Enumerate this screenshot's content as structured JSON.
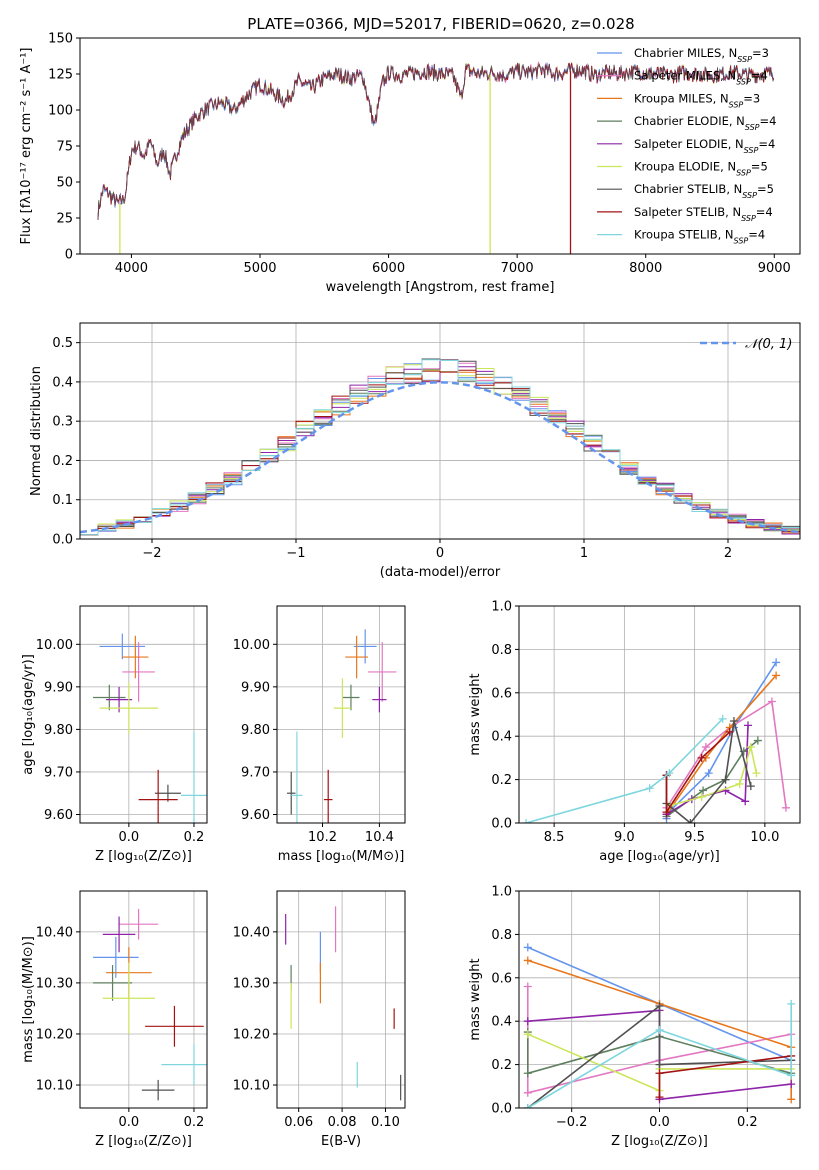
{
  "title": "PLATE=0366, MJD=52017, FIBERID=0620, z=0.028",
  "colors": {
    "Chabrier MILES": "#6495ed",
    "Salpeter MILES": "#e377c2",
    "Kroupa MILES": "#e8771c",
    "Chabrier ELODIE": "#5f7f5f",
    "Salpeter ELODIE": "#8e24aa",
    "Kroupa ELODIE": "#cce65a",
    "Chabrier STELIB": "#505050",
    "Salpeter STELIB": "#a31212",
    "Kroupa STELIB": "#7fd6de"
  },
  "chart_data": [
    {
      "type": "line",
      "title": "PLATE=0366, MJD=52017, FIBERID=0620, z=0.028",
      "xlabel": "wavelength [Angstrom, rest frame]",
      "ylabel": "Flux [fλ10⁻¹⁷ erg cm⁻² s⁻¹ A⁻¹]",
      "xlim": [
        3600,
        9200
      ],
      "ylim": [
        0,
        150
      ],
      "xticks": [
        4000,
        5000,
        6000,
        7000,
        8000,
        9000
      ],
      "yticks": [
        0,
        25,
        50,
        75,
        100,
        125,
        150
      ],
      "legend_position": "right",
      "legend": [
        {
          "label": "Chabrier MILES, N",
          "nssp": "3"
        },
        {
          "label": "Salpeter MILES, N",
          "nssp": "4"
        },
        {
          "label": "Kroupa MILES, N",
          "nssp": "3"
        },
        {
          "label": "Chabrier ELODIE, N",
          "nssp": "4"
        },
        {
          "label": "Salpeter ELODIE, N",
          "nssp": "4"
        },
        {
          "label": "Kroupa ELODIE, N",
          "nssp": "5"
        },
        {
          "label": "Chabrier STELIB, N",
          "nssp": "5"
        },
        {
          "label": "Salpeter STELIB, N",
          "nssp": "4"
        },
        {
          "label": "Kroupa STELIB, N",
          "nssp": "4"
        }
      ],
      "nssp_sub": "SSP",
      "nssp_eq": "=",
      "spectrum_x": [
        3740,
        3780,
        3820,
        3860,
        3900,
        3950,
        4000,
        4050,
        4100,
        4150,
        4200,
        4250,
        4300,
        4350,
        4400,
        4500,
        4600,
        4700,
        4800,
        4900,
        5000,
        5100,
        5200,
        5300,
        5400,
        5500,
        5600,
        5700,
        5800,
        5890,
        5950,
        6000,
        6100,
        6200,
        6300,
        6400,
        6500,
        6563,
        6600,
        6700,
        6800,
        6900,
        7000,
        7100,
        7200,
        7300,
        7400,
        7500,
        7600,
        7700,
        7800,
        7900,
        8000,
        8100,
        8200,
        8300,
        8400,
        8500,
        8600,
        8700,
        8800,
        8900,
        9000
      ],
      "spectrum_y": [
        30,
        45,
        42,
        38,
        35,
        40,
        72,
        75,
        68,
        78,
        62,
        72,
        55,
        70,
        82,
        95,
        102,
        105,
        100,
        110,
        118,
        112,
        106,
        120,
        115,
        122,
        125,
        122,
        124,
        88,
        118,
        126,
        124,
        126,
        127,
        125,
        124,
        108,
        128,
        125,
        126,
        124,
        127,
        126,
        128,
        125,
        127,
        128,
        124,
        126,
        125,
        127,
        126,
        125,
        124,
        126,
        125,
        124,
        125,
        126,
        124,
        125,
        126
      ],
      "dropouts": [
        {
          "x": 3910,
          "y_from": 35,
          "y_to": 0,
          "series": "Kroupa ELODIE"
        },
        {
          "x": 6790,
          "y_from": 124,
          "y_to": 0,
          "series": "Kroupa ELODIE"
        },
        {
          "x": 7415,
          "y_from": 127,
          "y_to": 0,
          "series": "Salpeter STELIB"
        }
      ]
    },
    {
      "type": "histogram",
      "xlabel": "(data-model)/error",
      "ylabel": "Normed distribution",
      "xlim": [
        -2.5,
        2.5
      ],
      "ylim": [
        0,
        0.55
      ],
      "xticks": [
        -2,
        -1,
        0,
        1,
        2
      ],
      "yticks": [
        0.0,
        0.1,
        0.2,
        0.3,
        0.4,
        0.5
      ],
      "legend_position": "top-right",
      "gaussian_label": "𝒩(0, 1)",
      "gaussian": {
        "mean": 0,
        "sigma": 1
      },
      "bin_width": 0.125
    },
    {
      "type": "scatter",
      "xlabel": "Z [log₁₀(Z/Z⊙)]",
      "ylabel": "age  [log₁₀(age/yr)]",
      "xlim": [
        -0.15,
        0.24
      ],
      "ylim": [
        9.58,
        10.09
      ],
      "xticks": [
        0.0,
        0.2
      ],
      "yticks": [
        9.6,
        9.7,
        9.8,
        9.9,
        10.0
      ],
      "points": [
        {
          "series": "Chabrier MILES",
          "x": -0.02,
          "y": 9.995,
          "xerr": 0.07,
          "yerr": 0.03
        },
        {
          "series": "Salpeter MILES",
          "x": 0.03,
          "y": 9.935,
          "xerr": 0.05,
          "yerr": 0.07
        },
        {
          "series": "Kroupa MILES",
          "x": 0.02,
          "y": 9.97,
          "xerr": 0.04,
          "yerr": 0.05
        },
        {
          "series": "Chabrier ELODIE",
          "x": -0.06,
          "y": 9.875,
          "xerr": 0.05,
          "yerr": 0.03
        },
        {
          "series": "Salpeter ELODIE",
          "x": -0.03,
          "y": 9.87,
          "xerr": 0.04,
          "yerr": 0.03
        },
        {
          "series": "Kroupa ELODIE",
          "x": 0.0,
          "y": 9.85,
          "xerr": 0.09,
          "yerr": 0.06
        },
        {
          "series": "Chabrier STELIB",
          "x": 0.12,
          "y": 9.65,
          "xerr": 0.04,
          "yerr": 0.02
        },
        {
          "series": "Salpeter STELIB",
          "x": 0.09,
          "y": 9.635,
          "xerr": 0.06,
          "yerr": 0.07
        },
        {
          "series": "Kroupa STELIB",
          "x": 0.2,
          "y": 9.645,
          "xerr": 0.04,
          "yerr": 0.15
        }
      ]
    },
    {
      "type": "scatter",
      "xlabel": "mass [log₁₀(M/M⊙)]",
      "xlim": [
        10.04,
        10.49
      ],
      "ylim": [
        9.58,
        10.09
      ],
      "xticks": [
        10.2,
        10.4
      ],
      "yticks": [
        9.6,
        9.7,
        9.8,
        9.9,
        10.0
      ],
      "points": [
        {
          "series": "Chabrier MILES",
          "x": 10.35,
          "y": 9.995,
          "xerr": 0.04,
          "yerr": 0.04
        },
        {
          "series": "Salpeter MILES",
          "x": 10.41,
          "y": 9.935,
          "xerr": 0.05,
          "yerr": 0.07
        },
        {
          "series": "Kroupa MILES",
          "x": 10.32,
          "y": 9.97,
          "xerr": 0.04,
          "yerr": 0.05
        },
        {
          "series": "Chabrier ELODIE",
          "x": 10.3,
          "y": 9.875,
          "xerr": 0.03,
          "yerr": 0.03
        },
        {
          "series": "Salpeter ELODIE",
          "x": 10.4,
          "y": 9.87,
          "xerr": 0.025,
          "yerr": 0.03
        },
        {
          "series": "Kroupa ELODIE",
          "x": 10.27,
          "y": 9.85,
          "xerr": 0.03,
          "yerr": 0.07
        },
        {
          "series": "Chabrier STELIB",
          "x": 10.09,
          "y": 9.65,
          "xerr": 0.015,
          "yerr": 0.05
        },
        {
          "series": "Salpeter STELIB",
          "x": 10.22,
          "y": 9.635,
          "xerr": 0.015,
          "yerr": 0.07
        },
        {
          "series": "Kroupa STELIB",
          "x": 10.11,
          "y": 9.645,
          "xerr": 0.02,
          "yerr": 0.15
        }
      ]
    },
    {
      "type": "line",
      "xlabel": "age  [log₁₀(age/yr)]",
      "ylabel": "mass weight",
      "xlim": [
        8.25,
        10.25
      ],
      "ylim": [
        0,
        1.0
      ],
      "xticks": [
        8.5,
        9.0,
        9.5,
        10.0
      ],
      "yticks": [
        0.0,
        0.2,
        0.4,
        0.6,
        0.8,
        1.0
      ],
      "series": [
        {
          "name": "Chabrier MILES",
          "x": [
            9.3,
            9.3,
            9.6,
            9.78,
            10.08
          ],
          "y": [
            0.02,
            0.04,
            0.23,
            0.44,
            0.74
          ]
        },
        {
          "name": "Salpeter MILES",
          "x": [
            9.3,
            9.58,
            9.75,
            10.05,
            10.15
          ],
          "y": [
            0.07,
            0.35,
            0.44,
            0.56,
            0.07
          ]
        },
        {
          "name": "Kroupa MILES",
          "x": [
            9.3,
            9.58,
            9.75,
            10.08
          ],
          "y": [
            0.04,
            0.3,
            0.44,
            0.68
          ]
        },
        {
          "name": "Chabrier ELODIE",
          "x": [
            9.3,
            9.56,
            9.72,
            9.85,
            9.95
          ],
          "y": [
            0.03,
            0.15,
            0.2,
            0.33,
            0.38
          ]
        },
        {
          "name": "Salpeter ELODIE",
          "x": [
            9.3,
            9.48,
            9.72,
            9.86,
            9.88
          ],
          "y": [
            0.04,
            0.11,
            0.15,
            0.1,
            0.45
          ]
        },
        {
          "name": "Kroupa ELODIE",
          "x": [
            9.32,
            9.55,
            9.82,
            9.9,
            9.94
          ],
          "y": [
            0.08,
            0.12,
            0.18,
            0.35,
            0.23
          ]
        },
        {
          "name": "Chabrier STELIB",
          "x": [
            9.3,
            9.3,
            9.47,
            9.72,
            9.78,
            9.9
          ],
          "y": [
            0.22,
            0.09,
            0.0,
            0.2,
            0.47,
            0.17
          ]
        },
        {
          "name": "Salpeter STELIB",
          "x": [
            9.3,
            9.3,
            9.55,
            9.75
          ],
          "y": [
            0.22,
            0.05,
            0.3,
            0.42
          ]
        },
        {
          "name": "Kroupa STELIB",
          "x": [
            8.3,
            9.18,
            9.32,
            9.7
          ],
          "y": [
            0.0,
            0.16,
            0.23,
            0.48
          ]
        }
      ]
    },
    {
      "type": "scatter",
      "xlabel": "Z [log₁₀(Z/Z⊙)]",
      "ylabel": "mass [log₁₀(M/M⊙)]",
      "xlim": [
        -0.15,
        0.24
      ],
      "ylim": [
        10.055,
        10.48
      ],
      "xticks": [
        0.0,
        0.2
      ],
      "yticks": [
        10.1,
        10.2,
        10.3,
        10.4
      ],
      "points": [
        {
          "series": "Chabrier MILES",
          "x": -0.04,
          "y": 10.35,
          "xerr": 0.07,
          "yerr": 0.04
        },
        {
          "series": "Salpeter MILES",
          "x": 0.03,
          "y": 10.415,
          "xerr": 0.06,
          "yerr": 0.03
        },
        {
          "series": "Kroupa MILES",
          "x": 0.0,
          "y": 10.32,
          "xerr": 0.07,
          "yerr": 0.05
        },
        {
          "series": "Chabrier ELODIE",
          "x": -0.05,
          "y": 10.3,
          "xerr": 0.06,
          "yerr": 0.035
        },
        {
          "series": "Salpeter ELODIE",
          "x": -0.03,
          "y": 10.395,
          "xerr": 0.05,
          "yerr": 0.035
        },
        {
          "series": "Kroupa ELODIE",
          "x": 0.0,
          "y": 10.27,
          "xerr": 0.08,
          "yerr": 0.07
        },
        {
          "series": "Chabrier STELIB",
          "x": 0.09,
          "y": 10.09,
          "xerr": 0.05,
          "yerr": 0.02
        },
        {
          "series": "Salpeter STELIB",
          "x": 0.14,
          "y": 10.215,
          "xerr": 0.09,
          "yerr": 0.04
        },
        {
          "series": "Kroupa STELIB",
          "x": 0.2,
          "y": 10.14,
          "xerr": 0.1,
          "yerr": 0.04
        }
      ]
    },
    {
      "type": "scatter",
      "xlabel": "E(B-V)",
      "xlim": [
        0.05,
        0.109
      ],
      "ylim": [
        10.055,
        10.48
      ],
      "xticks": [
        0.06,
        0.08,
        0.1
      ],
      "yticks": [
        10.1,
        10.2,
        10.3,
        10.4
      ],
      "points": [
        {
          "series": "Chabrier MILES",
          "x": 0.07,
          "y": 10.36,
          "yerr": 0.04
        },
        {
          "series": "Salpeter MILES",
          "x": 0.077,
          "y": 10.405,
          "yerr": 0.045
        },
        {
          "series": "Kroupa MILES",
          "x": 0.07,
          "y": 10.3,
          "yerr": 0.04
        },
        {
          "series": "Chabrier ELODIE",
          "x": 0.0565,
          "y": 10.31,
          "yerr": 0.025
        },
        {
          "series": "Salpeter ELODIE",
          "x": 0.054,
          "y": 10.405,
          "yerr": 0.03
        },
        {
          "series": "Kroupa ELODIE",
          "x": 0.0565,
          "y": 10.255,
          "yerr": 0.045
        },
        {
          "series": "Chabrier STELIB",
          "x": 0.107,
          "y": 10.095,
          "yerr": 0.025
        },
        {
          "series": "Salpeter STELIB",
          "x": 0.104,
          "y": 10.23,
          "yerr": 0.02
        },
        {
          "series": "Kroupa STELIB",
          "x": 0.087,
          "y": 10.12,
          "yerr": 0.025
        }
      ]
    },
    {
      "type": "line",
      "xlabel": "Z [log₁₀(Z/Z⊙)]",
      "ylabel": "mass weight",
      "xlim": [
        -0.32,
        0.32
      ],
      "ylim": [
        0,
        1.0
      ],
      "xticks": [
        -0.2,
        0.0,
        0.2
      ],
      "yticks": [
        0.0,
        0.2,
        0.4,
        0.6,
        0.8,
        1.0
      ],
      "series": [
        {
          "name": "Chabrier MILES",
          "x": [
            -0.3,
            0.0,
            0.3
          ],
          "y": [
            0.74,
            0.48,
            0.22
          ]
        },
        {
          "name": "Salpeter MILES",
          "x": [
            -0.3,
            -0.3,
            0.0,
            0.3
          ],
          "y": [
            0.56,
            0.07,
            0.22,
            0.34
          ]
        },
        {
          "name": "Kroupa MILES",
          "x": [
            -0.3,
            0.0,
            0.3,
            0.3
          ],
          "y": [
            0.68,
            0.48,
            0.28,
            0.04
          ]
        },
        {
          "name": "Chabrier ELODIE",
          "x": [
            -0.3,
            -0.3,
            0.0,
            0.3
          ],
          "y": [
            0.35,
            0.16,
            0.33,
            0.16
          ]
        },
        {
          "name": "Salpeter ELODIE",
          "x": [
            -0.3,
            0.0,
            0.0,
            0.3
          ],
          "y": [
            0.4,
            0.45,
            0.04,
            0.11
          ]
        },
        {
          "name": "Kroupa ELODIE",
          "x": [
            -0.3,
            0.0,
            0.0,
            0.3
          ],
          "y": [
            0.34,
            0.08,
            0.18,
            0.18
          ]
        },
        {
          "name": "Chabrier STELIB",
          "x": [
            -0.3,
            0.0,
            0.0,
            0.3
          ],
          "y": [
            0.0,
            0.47,
            0.2,
            0.22
          ]
        },
        {
          "name": "Salpeter STELIB",
          "x": [
            0.0,
            0.0,
            0.3
          ],
          "y": [
            0.05,
            0.16,
            0.24
          ]
        },
        {
          "name": "Kroupa STELIB",
          "x": [
            -0.3,
            0.0,
            0.3,
            0.3
          ],
          "y": [
            0.0,
            0.36,
            0.15,
            0.48
          ]
        }
      ]
    }
  ]
}
